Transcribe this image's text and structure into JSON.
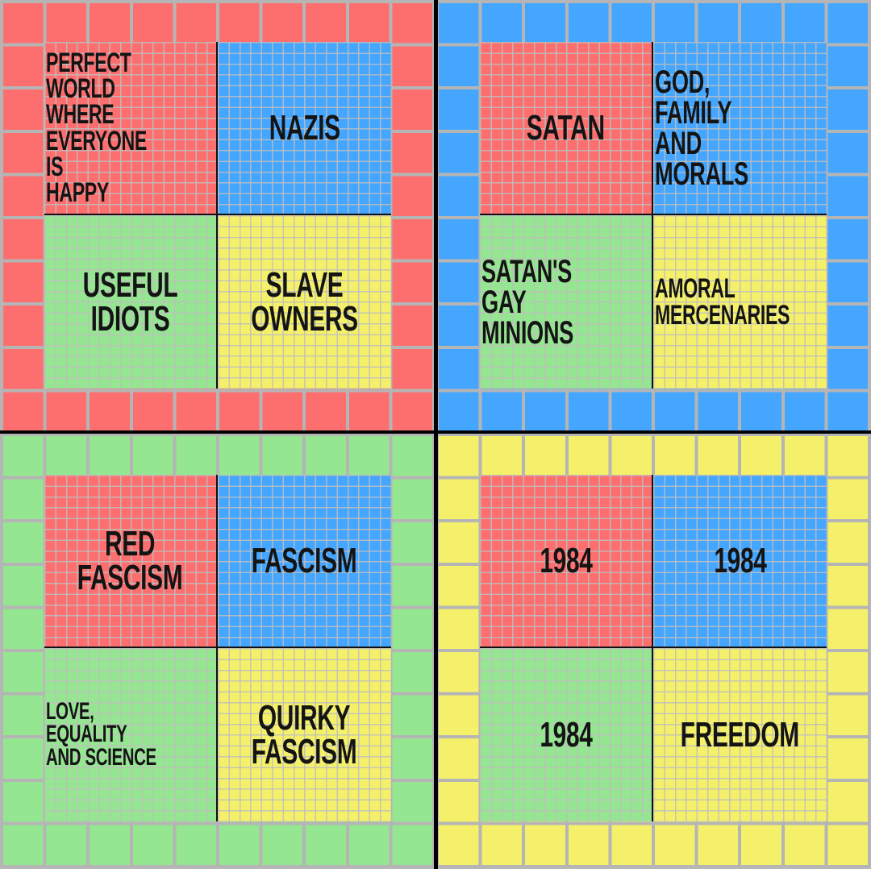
{
  "colors": {
    "red": "#fd6f6f",
    "blue": "#44a6ff",
    "green": "#94e790",
    "yellow": "#f5f06a",
    "grid": "#b5b5b5",
    "divider": "#000000"
  },
  "quadrants": [
    {
      "color": "red",
      "cells": [
        {
          "color": "red",
          "text": "PERFECT\nWORLD WHERE\nEVERYONE IS\nHAPPY"
        },
        {
          "color": "blue",
          "text": "NAZIS"
        },
        {
          "color": "green",
          "text": "USEFUL\nIDIOTS"
        },
        {
          "color": "yellow",
          "text": "SLAVE\nOWNERS"
        }
      ]
    },
    {
      "color": "blue",
      "cells": [
        {
          "color": "red",
          "text": "SATAN"
        },
        {
          "color": "blue",
          "text": "GOD,\nFAMILY AND\nMORALS"
        },
        {
          "color": "green",
          "text": "SATAN'S\nGAY\nMINIONS"
        },
        {
          "color": "yellow",
          "text": "AMORAL\nMERCENARIES"
        }
      ]
    },
    {
      "color": "green",
      "cells": [
        {
          "color": "red",
          "text": "RED\nFASCISM"
        },
        {
          "color": "blue",
          "text": "FASCISM"
        },
        {
          "color": "green",
          "text": "LOVE, EQUALITY\nAND SCIENCE"
        },
        {
          "color": "yellow",
          "text": "QUIRKY\nFASCISM"
        }
      ]
    },
    {
      "color": "yellow",
      "cells": [
        {
          "color": "red",
          "text": "1984"
        },
        {
          "color": "blue",
          "text": "1984"
        },
        {
          "color": "green",
          "text": "1984"
        },
        {
          "color": "yellow",
          "text": "FREEDOM"
        }
      ]
    }
  ]
}
